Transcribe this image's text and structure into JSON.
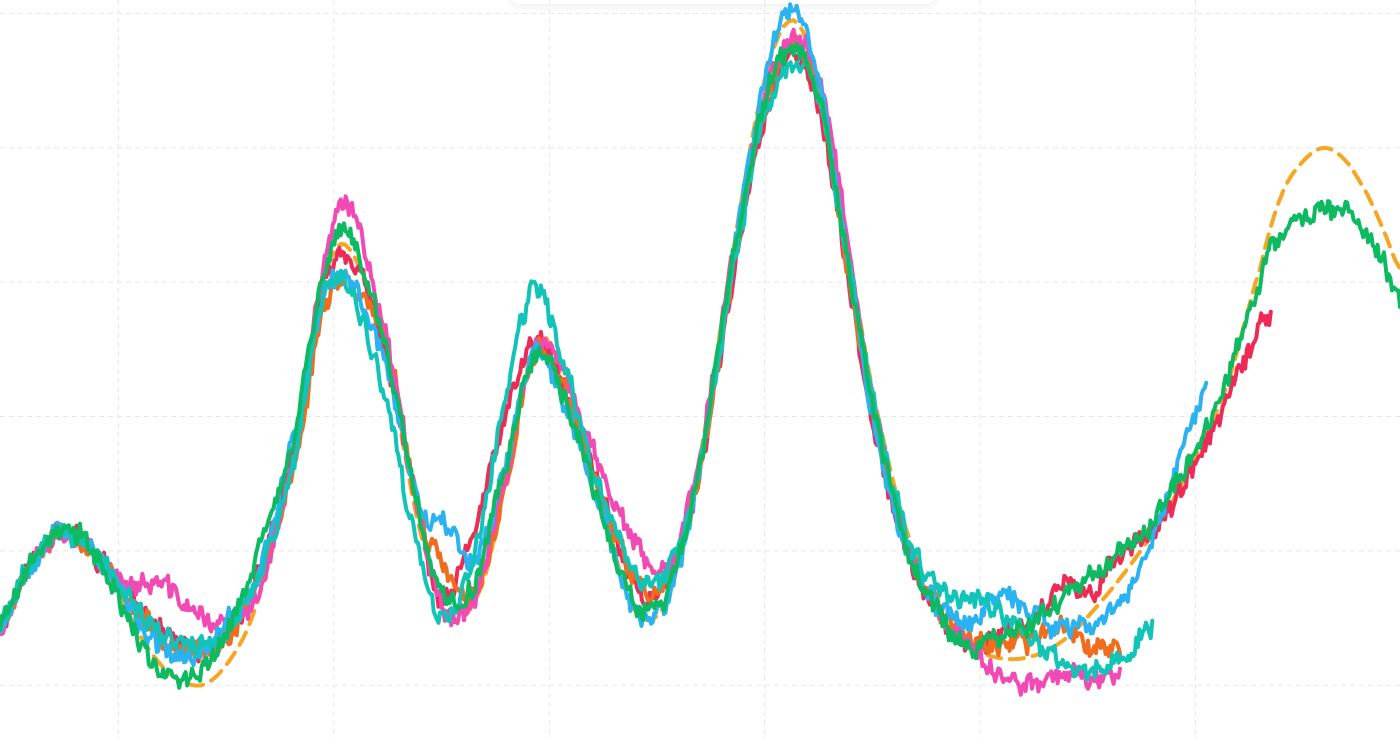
{
  "chart_data": {
    "type": "line",
    "title": "",
    "xlabel": "",
    "ylabel": "",
    "xlim": [
      0,
      6.5
    ],
    "ylim": [
      0,
      5.5
    ],
    "grid": true,
    "legend": "none",
    "x_gridlines": [
      0.55,
      1.55,
      2.55,
      3.55,
      4.55,
      5.55
    ],
    "y_gridlines": [
      0.4,
      1.4,
      2.4,
      3.4,
      4.4,
      5.4
    ],
    "reference": {
      "color": "#f5a623",
      "style": "dashed",
      "x": [
        0.0,
        0.12,
        0.28,
        0.45,
        0.7,
        0.9,
        1.05,
        1.2,
        1.38,
        1.5,
        1.62,
        1.8,
        1.95,
        2.1,
        2.25,
        2.38,
        2.5,
        2.62,
        2.8,
        2.95,
        3.1,
        3.25,
        3.4,
        3.55,
        3.68,
        3.8,
        3.92,
        4.05,
        4.2,
        4.35,
        4.5,
        4.65,
        4.8,
        4.95,
        5.1,
        5.25,
        5.4,
        5.55,
        5.7,
        5.85,
        5.95,
        6.05,
        6.15,
        6.25,
        6.35,
        6.42,
        6.5
      ],
      "y": [
        0.85,
        1.25,
        1.55,
        1.35,
        0.65,
        0.4,
        0.55,
        1.05,
        2.2,
        3.4,
        3.65,
        2.8,
        1.55,
        0.9,
        1.2,
        2.2,
        3.0,
        2.6,
        1.7,
        0.95,
        1.05,
        2.1,
        3.6,
        4.9,
        5.35,
        4.9,
        3.8,
        2.6,
        1.6,
        1.0,
        0.7,
        0.6,
        0.62,
        0.75,
        1.0,
        1.3,
        1.65,
        2.1,
        2.65,
        3.5,
        4.05,
        4.3,
        4.4,
        4.3,
        4.05,
        3.8,
        3.5
      ]
    },
    "series": [
      {
        "color": "#ee2b55",
        "seed": 11,
        "x": [
          0.0,
          0.12,
          0.28,
          0.45,
          0.7,
          0.9,
          1.05,
          1.2,
          1.38,
          1.5,
          1.62,
          1.8,
          1.95,
          2.05,
          2.2,
          2.35,
          2.48,
          2.6,
          2.78,
          2.95,
          3.1,
          3.25,
          3.4,
          3.55,
          3.68,
          3.8,
          3.92,
          4.05,
          4.2,
          4.35,
          4.5,
          4.65,
          4.8,
          4.95,
          5.05,
          5.15,
          5.3,
          5.45,
          5.6,
          5.75,
          5.9
        ],
        "y": [
          0.85,
          1.25,
          1.55,
          1.35,
          0.9,
          0.65,
          0.75,
          1.25,
          2.2,
          3.35,
          3.6,
          2.8,
          1.65,
          1.0,
          1.55,
          2.4,
          2.95,
          2.65,
          1.9,
          1.15,
          1.15,
          2.0,
          3.4,
          4.6,
          5.1,
          4.7,
          3.6,
          2.4,
          1.45,
          0.95,
          0.7,
          0.8,
          0.9,
          1.15,
          1.05,
          1.3,
          1.5,
          1.75,
          2.2,
          2.7,
          3.2
        ],
        "noise": 0.1
      },
      {
        "color": "#f06d1e",
        "seed": 23,
        "x": [
          0.0,
          0.12,
          0.28,
          0.45,
          0.7,
          0.9,
          1.05,
          1.2,
          1.38,
          1.5,
          1.62,
          1.8,
          1.95,
          2.05,
          2.2,
          2.35,
          2.48,
          2.6,
          2.78,
          2.95,
          3.1,
          3.25,
          3.4,
          3.55,
          3.68,
          3.8,
          3.92,
          4.05,
          4.2,
          4.35,
          4.5,
          4.65,
          4.8,
          4.95,
          5.05,
          5.2
        ],
        "y": [
          0.85,
          1.25,
          1.55,
          1.35,
          0.85,
          0.65,
          0.75,
          1.2,
          2.1,
          3.2,
          3.4,
          2.9,
          1.7,
          1.3,
          1.05,
          1.9,
          2.85,
          2.65,
          1.85,
          1.2,
          1.15,
          2.0,
          3.45,
          4.7,
          5.15,
          4.8,
          3.65,
          2.45,
          1.5,
          1.0,
          0.75,
          0.7,
          0.75,
          0.85,
          0.7,
          0.7
        ],
        "noise": 0.1
      },
      {
        "color": "#f24ab5",
        "seed": 37,
        "x": [
          0.0,
          0.12,
          0.28,
          0.45,
          0.6,
          0.75,
          0.9,
          1.05,
          1.2,
          1.38,
          1.5,
          1.62,
          1.8,
          1.95,
          2.05,
          2.2,
          2.35,
          2.48,
          2.6,
          2.78,
          2.95,
          3.1,
          3.25,
          3.4,
          3.55,
          3.68,
          3.8,
          3.92,
          4.05,
          4.2,
          4.35,
          4.5,
          4.65,
          4.8,
          4.95,
          5.05,
          5.2
        ],
        "y": [
          0.85,
          1.25,
          1.55,
          1.35,
          1.15,
          1.15,
          0.95,
          0.85,
          1.1,
          2.2,
          3.5,
          3.95,
          2.95,
          1.7,
          1.0,
          1.05,
          1.95,
          2.9,
          2.75,
          2.05,
          1.45,
          1.25,
          2.15,
          3.55,
          4.75,
          5.2,
          4.95,
          3.9,
          2.55,
          1.5,
          0.95,
          0.7,
          0.45,
          0.42,
          0.5,
          0.45,
          0.5
        ],
        "noise": 0.1
      },
      {
        "color": "#2ab3f0",
        "seed": 53,
        "x": [
          0.0,
          0.12,
          0.28,
          0.45,
          0.7,
          0.9,
          1.05,
          1.2,
          1.38,
          1.5,
          1.62,
          1.8,
          1.95,
          2.05,
          2.2,
          2.35,
          2.48,
          2.6,
          2.78,
          2.95,
          3.1,
          3.25,
          3.4,
          3.55,
          3.68,
          3.8,
          3.92,
          4.05,
          4.2,
          4.35,
          4.5,
          4.65,
          4.8,
          4.95,
          5.05,
          5.2,
          5.35,
          5.5,
          5.6
        ],
        "y": [
          0.85,
          1.25,
          1.55,
          1.35,
          0.75,
          0.6,
          0.85,
          1.25,
          2.35,
          3.25,
          3.4,
          2.75,
          1.75,
          1.65,
          1.35,
          2.05,
          2.9,
          2.55,
          1.75,
          0.95,
          1.05,
          2.0,
          3.55,
          4.9,
          5.45,
          4.95,
          3.75,
          2.4,
          1.45,
          1.0,
          0.9,
          1.05,
          0.95,
          0.8,
          0.85,
          1.0,
          1.5,
          2.15,
          2.65
        ],
        "noise": 0.1
      },
      {
        "color": "#12c4b8",
        "seed": 71,
        "x": [
          0.0,
          0.12,
          0.28,
          0.45,
          0.7,
          0.9,
          1.05,
          1.2,
          1.38,
          1.5,
          1.62,
          1.8,
          1.95,
          2.05,
          2.2,
          2.35,
          2.48,
          2.6,
          2.78,
          2.95,
          3.1,
          3.25,
          3.4,
          3.55,
          3.68,
          3.8,
          3.92,
          4.05,
          4.2,
          4.35,
          4.5,
          4.65,
          4.8,
          4.95,
          5.05,
          5.2,
          5.35
        ],
        "y": [
          0.85,
          1.25,
          1.55,
          1.35,
          0.85,
          0.7,
          0.8,
          1.2,
          2.15,
          3.3,
          3.35,
          2.45,
          1.35,
          0.9,
          1.35,
          2.55,
          3.35,
          2.85,
          1.9,
          1.25,
          1.25,
          2.05,
          3.45,
          4.6,
          5.0,
          4.75,
          3.7,
          2.55,
          1.6,
          1.15,
          1.05,
          0.95,
          0.75,
          0.55,
          0.5,
          0.6,
          0.85
        ],
        "noise": 0.1
      },
      {
        "color": "#0dba61",
        "seed": 89,
        "x": [
          0.0,
          0.12,
          0.28,
          0.45,
          0.7,
          0.9,
          1.05,
          1.2,
          1.38,
          1.5,
          1.62,
          1.8,
          1.95,
          2.05,
          2.2,
          2.35,
          2.48,
          2.6,
          2.78,
          2.95,
          3.1,
          3.25,
          3.4,
          3.55,
          3.68,
          3.8,
          3.92,
          4.05,
          4.2,
          4.35,
          4.5,
          4.65,
          4.8,
          4.95,
          5.1,
          5.25,
          5.4,
          5.55,
          5.7,
          5.85,
          5.95,
          6.05,
          6.15,
          6.25,
          6.35,
          6.42,
          6.5
        ],
        "y": [
          0.85,
          1.25,
          1.55,
          1.35,
          0.6,
          0.45,
          0.8,
          1.4,
          2.35,
          3.45,
          3.75,
          2.85,
          1.65,
          1.1,
          1.15,
          2.05,
          2.85,
          2.6,
          1.75,
          1.0,
          1.1,
          2.05,
          3.55,
          4.75,
          5.15,
          4.8,
          3.7,
          2.5,
          1.45,
          0.95,
          0.7,
          0.75,
          0.9,
          1.1,
          1.25,
          1.45,
          1.75,
          2.15,
          2.7,
          3.4,
          3.75,
          3.85,
          3.95,
          3.9,
          3.75,
          3.55,
          3.25
        ],
        "noise": 0.1
      }
    ]
  }
}
